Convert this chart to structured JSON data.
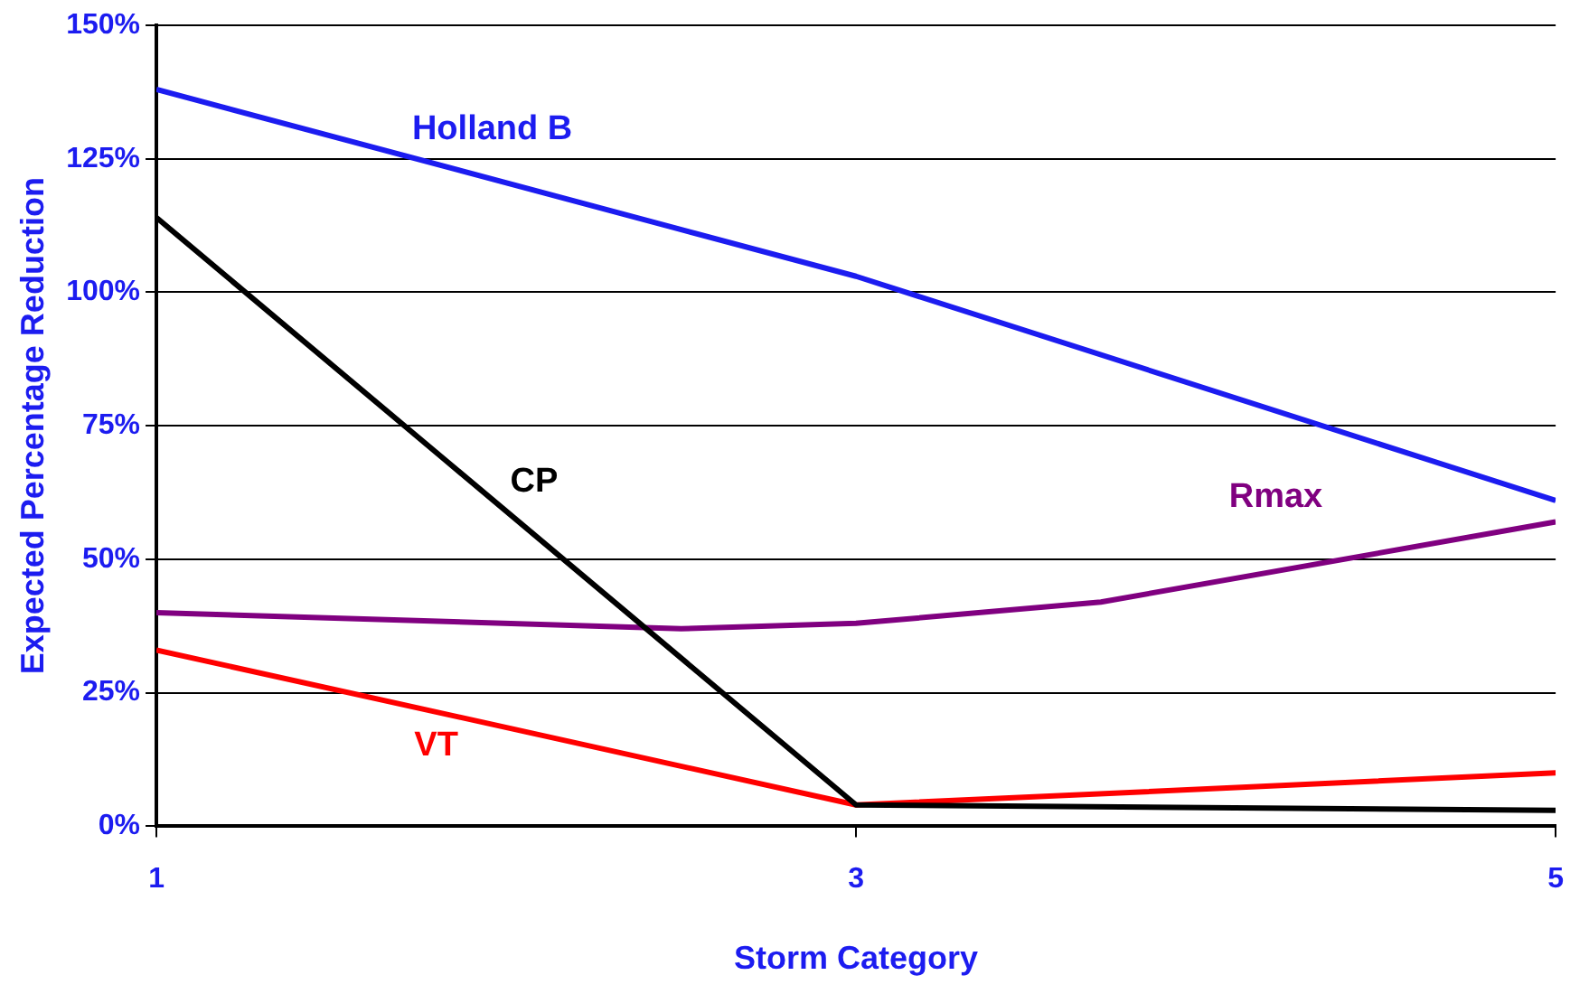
{
  "chart_data": {
    "type": "line",
    "xlabel": "Storm Category",
    "ylabel": "Expected Percentage Reduction",
    "xlim": [
      1,
      5
    ],
    "xticks": [
      1,
      3,
      5
    ],
    "ylim": [
      0,
      150
    ],
    "yticks": [
      {
        "value": 0,
        "label": "0%"
      },
      {
        "value": 25,
        "label": "25%"
      },
      {
        "value": 50,
        "label": "50%"
      },
      {
        "value": 75,
        "label": "75%"
      },
      {
        "value": 100,
        "label": "100%"
      },
      {
        "value": 125,
        "label": "125%"
      },
      {
        "value": 150,
        "label": "150%"
      }
    ],
    "grid": "y",
    "legend": false,
    "marker": "none",
    "line_style": "solid",
    "series": [
      {
        "name": "Holland B",
        "color": "#1c1cf0",
        "x": [
          1,
          3,
          5
        ],
        "values": [
          138,
          103,
          61
        ]
      },
      {
        "name": "CP",
        "color": "#000000",
        "x": [
          1,
          3,
          5
        ],
        "values": [
          114,
          4,
          3
        ]
      },
      {
        "name": "Rmax",
        "color": "#800080",
        "x": [
          1,
          2.5,
          3,
          3.7,
          5
        ],
        "values": [
          40,
          37,
          38,
          42,
          57
        ]
      },
      {
        "name": "VT",
        "color": "#ff0000",
        "x": [
          1,
          3,
          5
        ],
        "values": [
          33,
          4,
          10
        ]
      }
    ]
  }
}
